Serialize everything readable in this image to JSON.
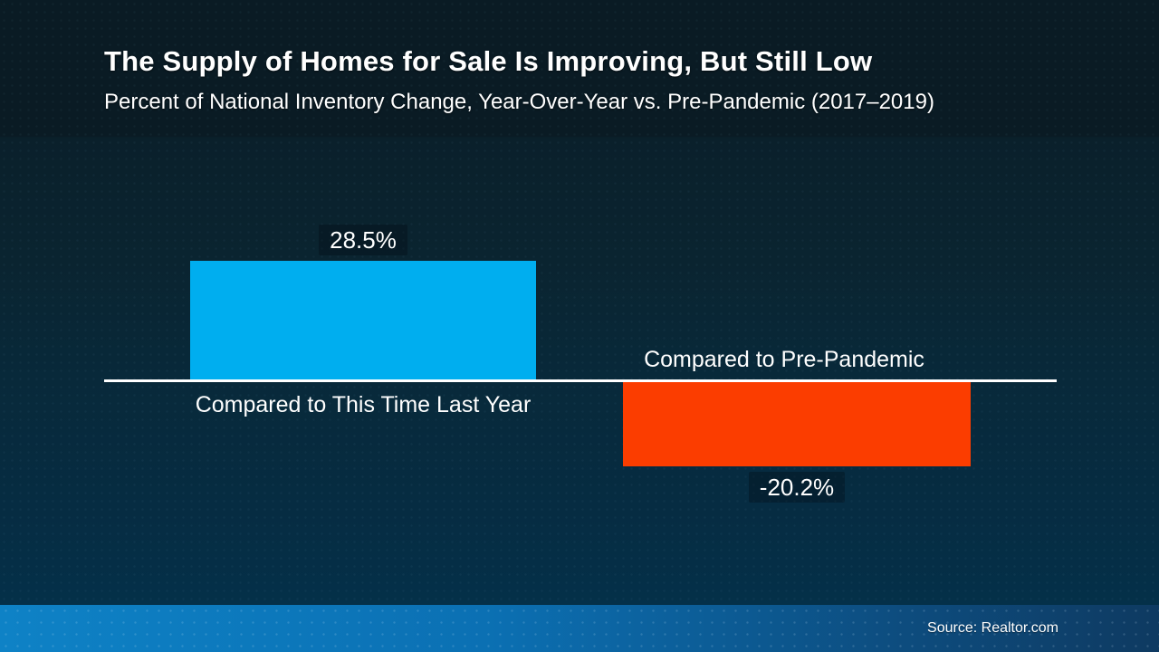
{
  "header": {
    "title": "The Supply of Homes for Sale Is Improving, But Still Low",
    "subtitle": "Percent of National Inventory Change, Year-Over-Year vs. Pre-Pandemic (2017–2019)"
  },
  "chart_data": {
    "type": "bar",
    "categories": [
      "Compared to This Time Last Year",
      "Compared to Pre-Pandemic"
    ],
    "values": [
      28.5,
      -20.2
    ],
    "value_labels": [
      "28.5%",
      "-20.2%"
    ],
    "series_colors": [
      "#00AEEF",
      "#FB3D00"
    ],
    "baseline": 0,
    "ylim": [
      -25,
      32
    ],
    "grid": false,
    "legend": "none",
    "axis_line_color": "#FFFFFF",
    "title": "The Supply of Homes for Sale Is Improving, But Still Low",
    "xlabel": "",
    "ylabel": ""
  },
  "footer": {
    "source": "Source: Realtor.com"
  },
  "colors": {
    "background_top": "#0a1b24",
    "background_bottom": "#043049",
    "bar_positive": "#00AEEF",
    "bar_negative": "#FB3D00",
    "axis": "#FFFFFF",
    "band_left": "#0e82c6",
    "band_right": "#0e3a61",
    "text": "#FFFFFF"
  }
}
